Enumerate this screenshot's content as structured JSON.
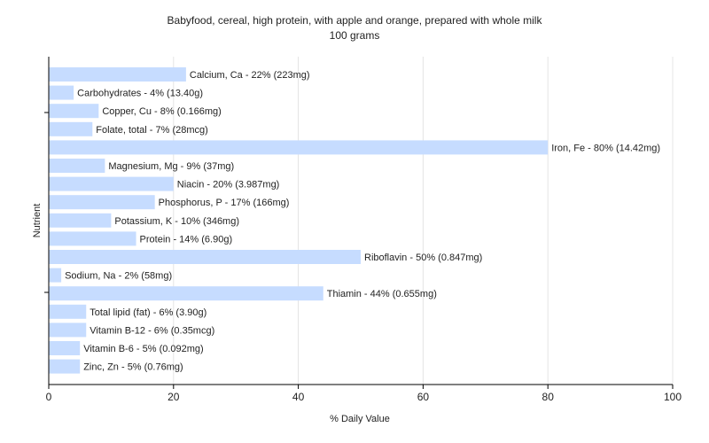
{
  "chart_data": {
    "type": "bar",
    "orientation": "horizontal",
    "title": "Babyfood, cereal, high protein, with apple and orange, prepared with whole milk",
    "subtitle": "100 grams",
    "xlabel": "% Daily Value",
    "ylabel": "Nutrient",
    "xlim": [
      0,
      100
    ],
    "xticks": [
      0,
      20,
      40,
      60,
      80,
      100
    ],
    "grid": true,
    "bar_color": "#c6dcff",
    "categories": [
      "Calcium, Ca",
      "Carbohydrates",
      "Copper, Cu",
      "Folate, total",
      "Iron, Fe",
      "Magnesium, Mg",
      "Niacin",
      "Phosphorus, P",
      "Potassium, K",
      "Protein",
      "Riboflavin",
      "Sodium, Na",
      "Thiamin",
      "Total lipid (fat)",
      "Vitamin B-12",
      "Vitamin B-6",
      "Zinc, Zn"
    ],
    "values": [
      22,
      4,
      8,
      7,
      80,
      9,
      20,
      17,
      10,
      14,
      50,
      2,
      44,
      6,
      6,
      5,
      5
    ],
    "labels": [
      "Calcium, Ca - 22% (223mg)",
      "Carbohydrates - 4% (13.40g)",
      "Copper, Cu - 8% (0.166mg)",
      "Folate, total - 7% (28mcg)",
      "Iron, Fe - 80% (14.42mg)",
      "Magnesium, Mg - 9% (37mg)",
      "Niacin - 20% (3.987mg)",
      "Phosphorus, P - 17% (166mg)",
      "Potassium, K - 10% (346mg)",
      "Protein - 14% (6.90g)",
      "Riboflavin - 50% (0.847mg)",
      "Sodium, Na - 2% (58mg)",
      "Thiamin - 44% (0.655mg)",
      "Total lipid (fat) - 6% (3.90g)",
      "Vitamin B-12 - 6% (0.35mcg)",
      "Vitamin B-6 - 5% (0.092mg)",
      "Zinc, Zn - 5% (0.76mg)"
    ]
  }
}
